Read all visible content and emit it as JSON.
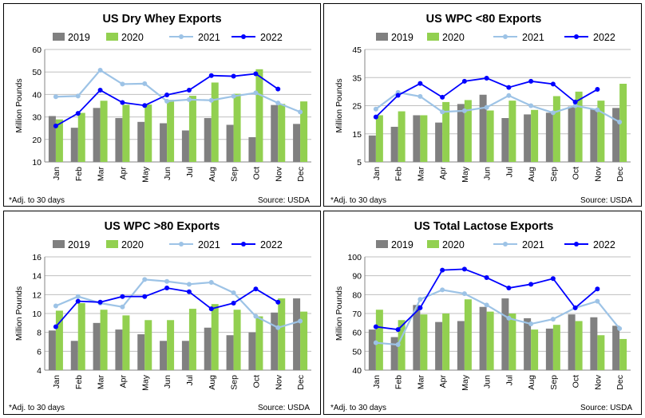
{
  "colors": {
    "y2019": "#808080",
    "y2020": "#92d050",
    "y2021": "#9dc3e6",
    "y2022": "#0000ff",
    "grid": "#bfbfbf"
  },
  "chart_data": [
    {
      "type": "bar+line",
      "title": "US Dry Whey Exports",
      "ylabel": "Million Pounds",
      "ylim": [
        10,
        60
      ],
      "yticks": [
        10,
        20,
        30,
        40,
        50,
        60
      ],
      "categories": [
        "Jan",
        "Feb",
        "Mar",
        "Apr",
        "May",
        "Jun",
        "Jul",
        "Aug",
        "Sep",
        "Oct",
        "Nov",
        "Dec"
      ],
      "bar_series": [
        {
          "name": "2019",
          "values": [
            30.4,
            25.2,
            34,
            29.5,
            27.8,
            27.2,
            24,
            29.5,
            26.5,
            21,
            35.3,
            26.9
          ]
        },
        {
          "name": "2020",
          "values": [
            28.9,
            31.8,
            37.2,
            35.4,
            35.5,
            37.6,
            39.4,
            45.3,
            40.3,
            51.2,
            35.8,
            36.9
          ]
        }
      ],
      "line_series": [
        {
          "name": "2021",
          "values": [
            39,
            39.3,
            50.8,
            44.6,
            44.8,
            37,
            37.7,
            37.4,
            39.2,
            40.7,
            36.2,
            32.2
          ]
        },
        {
          "name": "2022",
          "values": [
            26,
            31.6,
            41.9,
            36.4,
            35.1,
            39.8,
            41.9,
            48.4,
            48.1,
            49.2,
            42.4,
            null
          ]
        }
      ],
      "legend": [
        "2019",
        "2020",
        "2021",
        "2022"
      ],
      "footnote": "*Adj. to 30 days",
      "source": "Source: USDA"
    },
    {
      "type": "bar+line",
      "title": "US WPC <80 Exports",
      "ylabel": "Million Pounds",
      "ylim": [
        5,
        45
      ],
      "yticks": [
        5,
        15,
        25,
        35,
        45
      ],
      "categories": [
        "Jan",
        "Feb",
        "Mar",
        "Apr",
        "May",
        "Jun",
        "Jul",
        "Aug",
        "Sep",
        "Oct",
        "Nov",
        "Dec"
      ],
      "bar_series": [
        {
          "name": "2019",
          "values": [
            14.4,
            17.5,
            21.6,
            19,
            25.6,
            28.9,
            20.6,
            21.9,
            22.5,
            24.7,
            23.9,
            24.2
          ]
        },
        {
          "name": "2020",
          "values": [
            21.6,
            23,
            21.6,
            26.3,
            27,
            23.3,
            26.8,
            23.5,
            28.4,
            30,
            26.8,
            32.8
          ]
        }
      ],
      "line_series": [
        {
          "name": "2021",
          "values": [
            23.8,
            29.7,
            28.3,
            22.8,
            23.2,
            24.4,
            28.6,
            25,
            22.5,
            25,
            23.5,
            19.2
          ]
        },
        {
          "name": "2022",
          "values": [
            21,
            28.7,
            32.9,
            28,
            33.7,
            34.8,
            31.5,
            33.7,
            32.7,
            26.3,
            30.8,
            null
          ]
        }
      ],
      "legend": [
        "2019",
        "2020",
        "2021",
        "2022"
      ],
      "footnote": "*Adj. to 30 days",
      "source": "Source: USDA"
    },
    {
      "type": "bar+line",
      "title": "US WPC >80 Exports",
      "ylabel": "Million Pounds",
      "ylim": [
        4,
        16
      ],
      "yticks": [
        4,
        6,
        8,
        10,
        12,
        14,
        16
      ],
      "categories": [
        "Jan",
        "Feb",
        "Mar",
        "Apr",
        "May",
        "Jun",
        "Jul",
        "Aug",
        "Sep",
        "Oct",
        "Nov",
        "Dec"
      ],
      "bar_series": [
        {
          "name": "2019",
          "values": [
            8.2,
            7.1,
            9,
            8.3,
            7.8,
            7.1,
            7.1,
            8.5,
            7.7,
            8,
            10.1,
            11.6
          ]
        },
        {
          "name": "2020",
          "values": [
            10.3,
            11.1,
            10.4,
            9.8,
            9.3,
            9.3,
            10.5,
            11,
            10.4,
            9.7,
            11.6,
            10.2
          ]
        }
      ],
      "line_series": [
        {
          "name": "2021",
          "values": [
            10.8,
            11.8,
            11.1,
            10.7,
            13.6,
            13.4,
            13.1,
            13.3,
            12.2,
            9.7,
            8.5,
            9.2
          ]
        },
        {
          "name": "2022",
          "values": [
            8.6,
            11.3,
            11.2,
            11.8,
            11.8,
            12.7,
            12.3,
            10.5,
            11.1,
            12.6,
            11.2,
            null
          ]
        }
      ],
      "legend": [
        "2019",
        "2020",
        "2021",
        "2022"
      ],
      "footnote": "*Adj. to 30 days",
      "source": "Source: USDA"
    },
    {
      "type": "bar+line",
      "title": "US Total Lactose Exports",
      "ylabel": "Million Pounds",
      "ylim": [
        40,
        100
      ],
      "yticks": [
        40,
        50,
        60,
        70,
        80,
        90,
        100
      ],
      "categories": [
        "Jan",
        "Feb",
        "Mar",
        "Apr",
        "May",
        "Jun",
        "Jul",
        "Aug",
        "Sep",
        "Oct",
        "Nov",
        "Dec"
      ],
      "bar_series": [
        {
          "name": "2019",
          "values": [
            61.5,
            57.5,
            74.5,
            65.5,
            66,
            73.5,
            78,
            67.5,
            62,
            69.5,
            68,
            63.5
          ]
        },
        {
          "name": "2020",
          "values": [
            72,
            66.5,
            69.5,
            70,
            77.5,
            71,
            70,
            61.5,
            64,
            66,
            58.5,
            56.5
          ]
        }
      ],
      "line_series": [
        {
          "name": "2021",
          "values": [
            54.5,
            53.5,
            77.5,
            82.5,
            80.5,
            74.5,
            67.5,
            64.5,
            67,
            73,
            76.5,
            62
          ]
        },
        {
          "name": "2022",
          "values": [
            63,
            61.5,
            73,
            93,
            93.5,
            89,
            83.5,
            85.5,
            88.5,
            73,
            83,
            null
          ]
        }
      ],
      "legend": [
        "2019",
        "2020",
        "2021",
        "2022"
      ],
      "footnote": "*Adj. to 30 days",
      "source": "Source: USDA"
    }
  ]
}
